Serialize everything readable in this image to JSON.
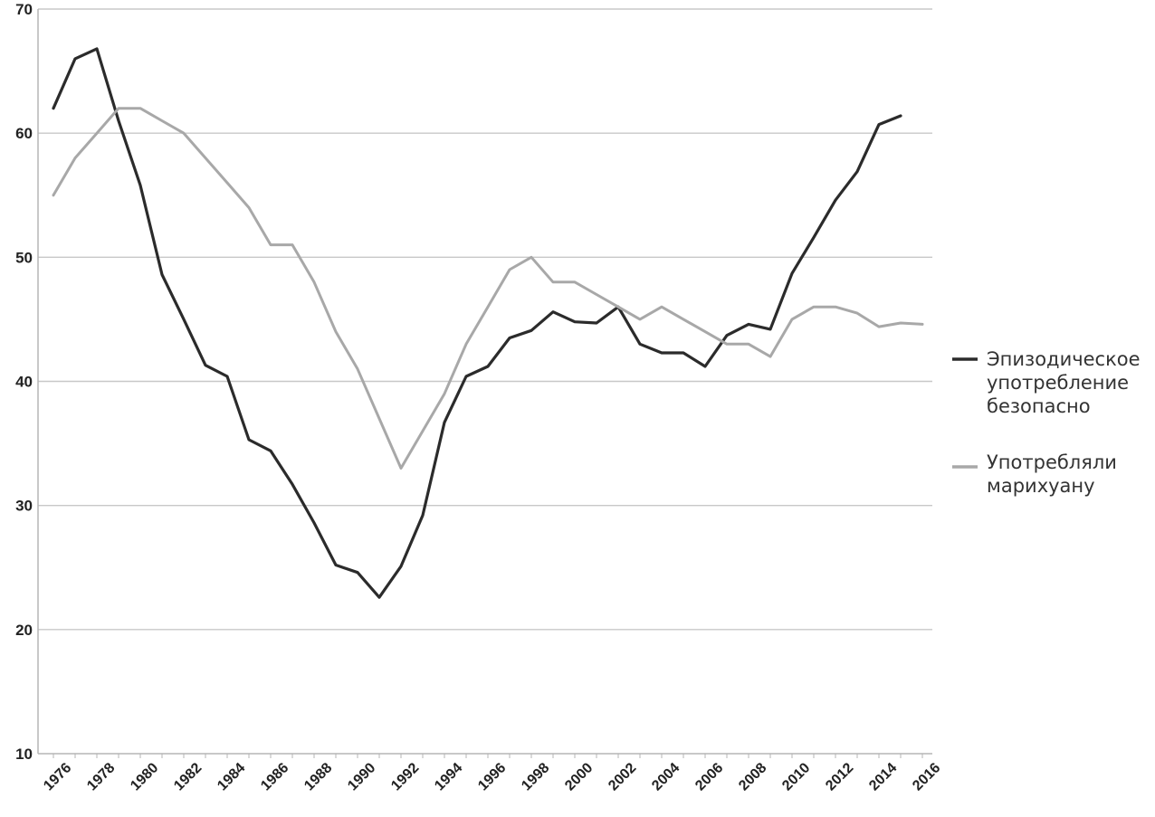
{
  "chart_data": {
    "type": "line",
    "title": "",
    "xlabel": "",
    "ylabel": "",
    "ylim": [
      10,
      70
    ],
    "yticks": [
      "10",
      "20",
      "30",
      "40",
      "50",
      "60",
      "70"
    ],
    "xticks": [
      "1976",
      "1978",
      "1980",
      "1982",
      "1984",
      "1986",
      "1988",
      "1990",
      "1992",
      "1994",
      "1996",
      "1998",
      "2000",
      "2002",
      "2004",
      "2006",
      "2008",
      "2010",
      "2012",
      "2014",
      "2016"
    ],
    "grid": "horizontal",
    "legend_position": "right",
    "x": [
      1976,
      1977,
      1978,
      1979,
      1980,
      1981,
      1982,
      1983,
      1984,
      1985,
      1986,
      1987,
      1988,
      1989,
      1990,
      1991,
      1992,
      1993,
      1994,
      1995,
      1996,
      1997,
      1998,
      1999,
      2000,
      2001,
      2002,
      2003,
      2004,
      2005,
      2006,
      2007,
      2008,
      2009,
      2010,
      2011,
      2012,
      2013,
      2014,
      2015,
      2016
    ],
    "series": [
      {
        "name_lines": [
          "Эпизодическое",
          "употребление",
          "безопасно"
        ],
        "color": "#2b2b2b",
        "values": [
          62.0,
          66.0,
          66.8,
          61.0,
          55.8,
          48.6,
          45.0,
          41.3,
          40.4,
          35.3,
          34.4,
          31.7,
          28.6,
          25.2,
          24.6,
          22.6,
          25.1,
          29.2,
          36.7,
          40.4,
          41.2,
          43.5,
          44.1,
          45.6,
          44.8,
          44.7,
          46.0,
          43.0,
          42.3,
          42.3,
          41.2,
          43.7,
          44.6,
          44.2,
          48.7,
          51.6,
          54.6,
          56.9,
          60.7,
          61.4,
          null
        ]
      },
      {
        "name_lines": [
          "Употребляли",
          "марихуану"
        ],
        "color": "#a8a8a8",
        "values": [
          55.0,
          58.0,
          60.0,
          62.0,
          62.0,
          61.0,
          60.0,
          58.0,
          56.0,
          54.0,
          51.0,
          51.0,
          48.0,
          44.0,
          41.0,
          37.0,
          33.0,
          36.0,
          39.0,
          43.0,
          46.0,
          49.0,
          50.0,
          48.0,
          48.0,
          47.0,
          46.0,
          45.0,
          46.0,
          45.0,
          44.0,
          43.0,
          43.0,
          42.0,
          45.0,
          46.0,
          46.0,
          45.5,
          44.4,
          44.7,
          44.6
        ]
      }
    ]
  }
}
